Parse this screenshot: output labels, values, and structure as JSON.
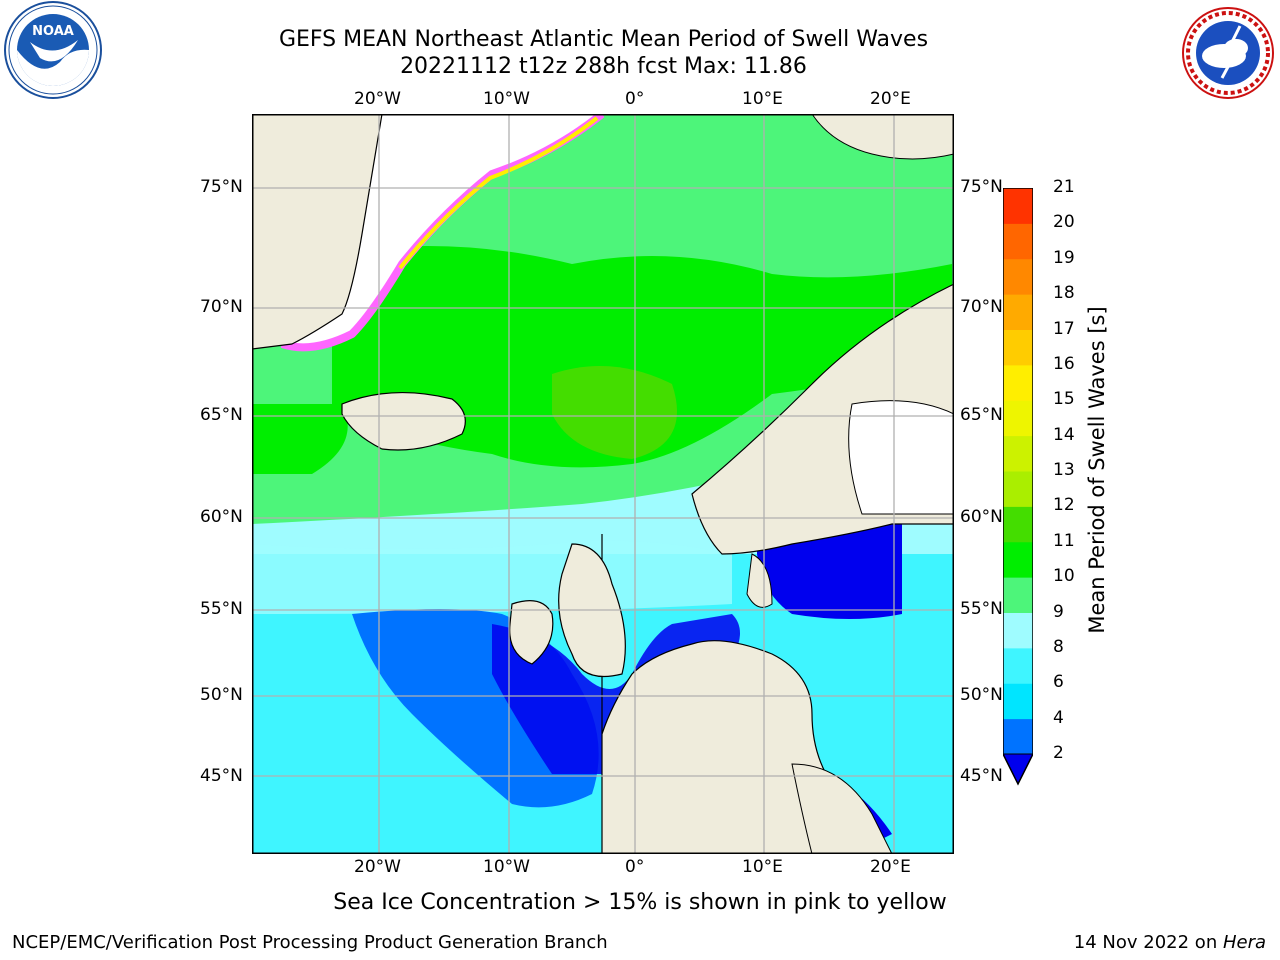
{
  "header": {
    "title_line1": "GEFS MEAN Northeast Atlantic Mean Period of Swell Waves",
    "title_line2": "20221112 t12z 288h fcst   Max: 11.86"
  },
  "logos": {
    "noaa_text": "NOAA",
    "noaa_ring_text": "NATIONAL OCEANIC AND ATMOSPHERIC ADMINISTRATION · U.S. DEPARTMENT OF COMMERCE",
    "nws_ring_text": "NATIONAL WEATHER SERVICE"
  },
  "map": {
    "lon_labels": [
      "20°W",
      "10°W",
      "0°",
      "10°E",
      "20°E"
    ],
    "lat_labels": [
      "75°N",
      "70°N",
      "65°N",
      "60°N",
      "55°N",
      "50°N",
      "45°N"
    ],
    "colors": {
      "land": "#efecdc",
      "ice_free_white": "#ffffff",
      "grid": "#b0b0b0",
      "coast": "#000000"
    }
  },
  "colorbar": {
    "label": "Mean Period of Swell Waves [s]",
    "ticks": [
      "2",
      "4",
      "6",
      "8",
      "9",
      "10",
      "11",
      "12",
      "13",
      "14",
      "15",
      "16",
      "17",
      "18",
      "19",
      "20",
      "21"
    ],
    "colors": [
      "#0073ff",
      "#00e5ff",
      "#3ff5ff",
      "#9ffcff",
      "#4df57a",
      "#00ee00",
      "#44dd00",
      "#aaee00",
      "#ccf200",
      "#eef500",
      "#ffee00",
      "#ffcc00",
      "#ffaa00",
      "#ff8800",
      "#ff6600",
      "#ff3300",
      "#ff0000"
    ],
    "extend_color": "#0000ee"
  },
  "caption": "Sea Ice Concentration > 15% is shown in pink to yellow",
  "footer": {
    "left": "NCEP/EMC/Verification Post Processing Product Generation Branch",
    "right_date": "14 Nov 2022 on ",
    "right_host": "Hera"
  }
}
